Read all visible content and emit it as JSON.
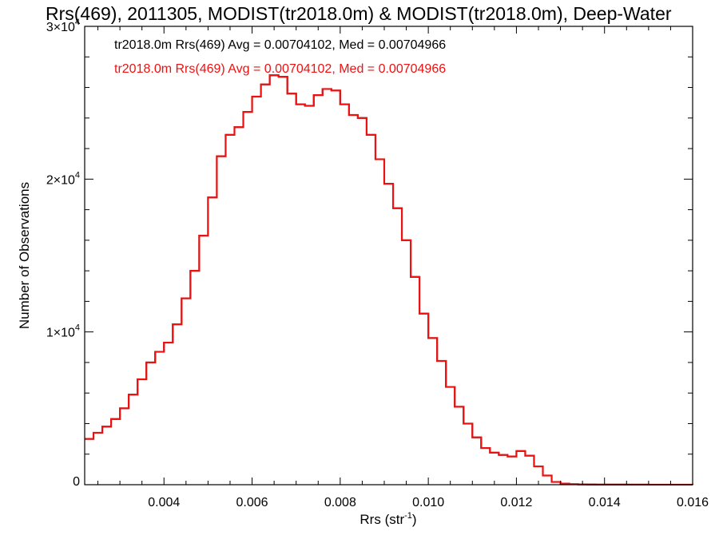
{
  "chart_data": {
    "type": "line",
    "title": "Rrs(469), 2011305, MODIST(tr2018.0m) & MODIST(tr2018.0m), Deep-Water",
    "xlabel": "Rrs (str",
    "xlabel_sup": "-1",
    "xlabel_end": ")",
    "ylabel": "Number of Observations",
    "xlim": [
      0.0022,
      0.016
    ],
    "ylim": [
      0,
      30000
    ],
    "x_ticks": [
      {
        "value": 0.004,
        "label": "0.004"
      },
      {
        "value": 0.006,
        "label": "0.006"
      },
      {
        "value": 0.008,
        "label": "0.008"
      },
      {
        "value": 0.01,
        "label": "0.010"
      },
      {
        "value": 0.012,
        "label": "0.012"
      },
      {
        "value": 0.014,
        "label": "0.014"
      },
      {
        "value": 0.016,
        "label": "0.016"
      }
    ],
    "y_ticks": [
      {
        "value": 0,
        "label": "0",
        "exp": ""
      },
      {
        "value": 10000,
        "label": "1×10",
        "exp": "4"
      },
      {
        "value": 20000,
        "label": "2×10",
        "exp": "4"
      },
      {
        "value": 30000,
        "label": "3×10",
        "exp": "4"
      }
    ],
    "series": [
      {
        "name": "tr2018.0m Rrs(469) Avg = 0.00704102, Med = 0.00704966",
        "color": "#000000",
        "points": [
          [
            0.0022,
            3000
          ],
          [
            0.0024,
            3400
          ],
          [
            0.0026,
            3800
          ],
          [
            0.0028,
            4300
          ],
          [
            0.003,
            5000
          ],
          [
            0.0032,
            5900
          ],
          [
            0.0034,
            6900
          ],
          [
            0.0036,
            8000
          ],
          [
            0.0038,
            8700
          ],
          [
            0.004,
            9300
          ],
          [
            0.0042,
            10500
          ],
          [
            0.0044,
            12200
          ],
          [
            0.0046,
            14000
          ],
          [
            0.0048,
            16300
          ],
          [
            0.005,
            18800
          ],
          [
            0.0052,
            21500
          ],
          [
            0.0054,
            22900
          ],
          [
            0.0056,
            23400
          ],
          [
            0.0058,
            24400
          ],
          [
            0.006,
            25400
          ],
          [
            0.0062,
            26200
          ],
          [
            0.0064,
            26800
          ],
          [
            0.0066,
            26700
          ],
          [
            0.0068,
            25600
          ],
          [
            0.007,
            24900
          ],
          [
            0.0072,
            24800
          ],
          [
            0.0074,
            25500
          ],
          [
            0.0076,
            25900
          ],
          [
            0.0078,
            25800
          ],
          [
            0.008,
            24900
          ],
          [
            0.0082,
            24200
          ],
          [
            0.0084,
            24000
          ],
          [
            0.0086,
            22900
          ],
          [
            0.0088,
            21300
          ],
          [
            0.009,
            19700
          ],
          [
            0.0092,
            18100
          ],
          [
            0.0094,
            16000
          ],
          [
            0.0096,
            13600
          ],
          [
            0.0098,
            11200
          ],
          [
            0.01,
            9600
          ],
          [
            0.0102,
            8100
          ],
          [
            0.0104,
            6400
          ],
          [
            0.0106,
            5100
          ],
          [
            0.0108,
            4000
          ],
          [
            0.011,
            3100
          ],
          [
            0.0112,
            2400
          ],
          [
            0.0114,
            2100
          ],
          [
            0.0116,
            1950
          ],
          [
            0.0118,
            1850
          ],
          [
            0.012,
            2200
          ],
          [
            0.0122,
            1900
          ],
          [
            0.0124,
            1200
          ],
          [
            0.0126,
            600
          ],
          [
            0.0128,
            180
          ],
          [
            0.013,
            70
          ],
          [
            0.0132,
            35
          ],
          [
            0.0134,
            20
          ],
          [
            0.0136,
            12
          ],
          [
            0.0138,
            8
          ],
          [
            0.014,
            6
          ],
          [
            0.0145,
            4
          ],
          [
            0.015,
            3
          ],
          [
            0.0155,
            2
          ],
          [
            0.016,
            1
          ]
        ]
      },
      {
        "name": "tr2018.0m Rrs(469) Avg = 0.00704102, Med = 0.00704966",
        "color": "#ee1111",
        "points": [
          [
            0.0022,
            3000
          ],
          [
            0.0024,
            3400
          ],
          [
            0.0026,
            3800
          ],
          [
            0.0028,
            4300
          ],
          [
            0.003,
            5000
          ],
          [
            0.0032,
            5900
          ],
          [
            0.0034,
            6900
          ],
          [
            0.0036,
            8000
          ],
          [
            0.0038,
            8700
          ],
          [
            0.004,
            9300
          ],
          [
            0.0042,
            10500
          ],
          [
            0.0044,
            12200
          ],
          [
            0.0046,
            14000
          ],
          [
            0.0048,
            16300
          ],
          [
            0.005,
            18800
          ],
          [
            0.0052,
            21500
          ],
          [
            0.0054,
            22900
          ],
          [
            0.0056,
            23400
          ],
          [
            0.0058,
            24400
          ],
          [
            0.006,
            25400
          ],
          [
            0.0062,
            26200
          ],
          [
            0.0064,
            26800
          ],
          [
            0.0066,
            26700
          ],
          [
            0.0068,
            25600
          ],
          [
            0.007,
            24900
          ],
          [
            0.0072,
            24800
          ],
          [
            0.0074,
            25500
          ],
          [
            0.0076,
            25900
          ],
          [
            0.0078,
            25800
          ],
          [
            0.008,
            24900
          ],
          [
            0.0082,
            24200
          ],
          [
            0.0084,
            24000
          ],
          [
            0.0086,
            22900
          ],
          [
            0.0088,
            21300
          ],
          [
            0.009,
            19700
          ],
          [
            0.0092,
            18100
          ],
          [
            0.0094,
            16000
          ],
          [
            0.0096,
            13600
          ],
          [
            0.0098,
            11200
          ],
          [
            0.01,
            9600
          ],
          [
            0.0102,
            8100
          ],
          [
            0.0104,
            6400
          ],
          [
            0.0106,
            5100
          ],
          [
            0.0108,
            4000
          ],
          [
            0.011,
            3100
          ],
          [
            0.0112,
            2400
          ],
          [
            0.0114,
            2100
          ],
          [
            0.0116,
            1950
          ],
          [
            0.0118,
            1850
          ],
          [
            0.012,
            2200
          ],
          [
            0.0122,
            1900
          ],
          [
            0.0124,
            1200
          ],
          [
            0.0126,
            600
          ],
          [
            0.0128,
            180
          ],
          [
            0.013,
            70
          ],
          [
            0.0132,
            35
          ],
          [
            0.0134,
            20
          ],
          [
            0.0136,
            12
          ],
          [
            0.0138,
            8
          ],
          [
            0.014,
            6
          ],
          [
            0.0145,
            4
          ],
          [
            0.015,
            3
          ],
          [
            0.0155,
            2
          ],
          [
            0.016,
            1
          ]
        ]
      }
    ],
    "grid": false,
    "legend_position": "top-left"
  }
}
